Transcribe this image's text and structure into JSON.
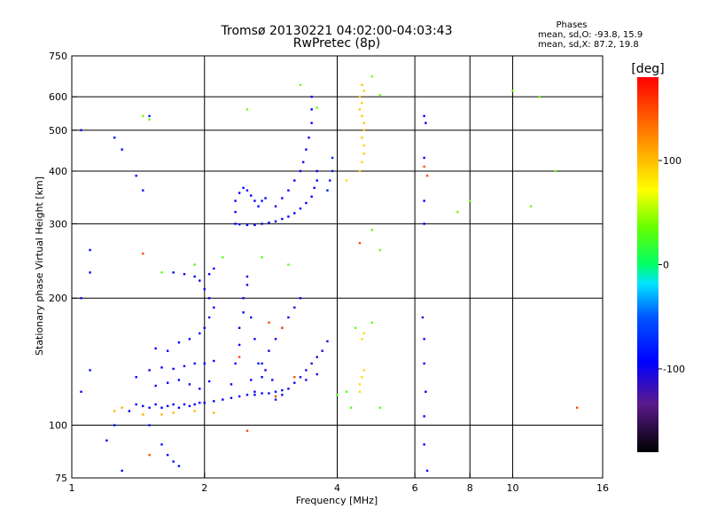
{
  "chart_data": {
    "type": "scatter",
    "title_line1": "Tromsø 20130221 04:02:00-04:03:43",
    "title_line2": "RwPretec (8p)",
    "phases_title": "Phases",
    "phases_o": "mean, sd,O: -93.8, 15.9",
    "phases_x": "mean, sd,X:  87.2, 19.8",
    "xlabel": "Frequency [MHz]",
    "ylabel": "Stationary phase Virtual Height [km]",
    "x_scale": "log",
    "y_scale": "log",
    "xlim": [
      1,
      16
    ],
    "ylim": [
      75,
      750
    ],
    "x_ticks": [
      {
        "v": 1,
        "label": "1"
      },
      {
        "v": 2,
        "label": "2"
      },
      {
        "v": 4,
        "label": "4"
      },
      {
        "v": 6,
        "label": "6"
      },
      {
        "v": 8,
        "label": "8"
      },
      {
        "v": 10,
        "label": "10"
      },
      {
        "v": 16,
        "label": "16"
      }
    ],
    "x_gridlines": [
      2,
      4,
      6,
      8,
      10
    ],
    "y_ticks": [
      {
        "v": 75,
        "label": "75"
      },
      {
        "v": 100,
        "label": "100"
      },
      {
        "v": 200,
        "label": "200"
      },
      {
        "v": 300,
        "label": "300"
      },
      {
        "v": 400,
        "label": "400"
      },
      {
        "v": 500,
        "label": "500"
      },
      {
        "v": 600,
        "label": "600"
      },
      {
        "v": 750,
        "label": "750"
      }
    ],
    "y_gridlines": [
      100,
      200,
      300,
      400,
      500,
      600
    ],
    "grid": true,
    "colorbar": {
      "label": "[deg]",
      "range": [
        -180,
        180
      ],
      "ticks": [
        {
          "v": 100,
          "label": "100"
        },
        {
          "v": 0,
          "label": "0"
        },
        {
          "v": -100,
          "label": "-100"
        }
      ]
    },
    "traces": [
      {
        "phase": -100,
        "points": [
          [
            1.35,
            108
          ],
          [
            1.4,
            112
          ],
          [
            1.45,
            111
          ],
          [
            1.5,
            110
          ],
          [
            1.55,
            112
          ],
          [
            1.6,
            110
          ],
          [
            1.65,
            111
          ],
          [
            1.7,
            112
          ],
          [
            1.75,
            110
          ],
          [
            1.8,
            112
          ],
          [
            1.85,
            111
          ],
          [
            1.9,
            112
          ],
          [
            1.95,
            113
          ],
          [
            2.0,
            113
          ],
          [
            2.1,
            114
          ],
          [
            2.2,
            115
          ],
          [
            2.3,
            116
          ],
          [
            2.4,
            117
          ],
          [
            2.5,
            118
          ],
          [
            2.6,
            118
          ],
          [
            2.7,
            119
          ],
          [
            2.8,
            119
          ],
          [
            2.9,
            120
          ],
          [
            3.0,
            121
          ]
        ]
      },
      {
        "phase": -100,
        "points": [
          [
            1.4,
            130
          ],
          [
            1.5,
            135
          ],
          [
            1.6,
            137
          ],
          [
            1.7,
            136
          ],
          [
            1.8,
            138
          ],
          [
            1.9,
            140
          ],
          [
            2.0,
            140
          ],
          [
            2.1,
            142
          ],
          [
            1.55,
            124
          ],
          [
            1.65,
            126
          ],
          [
            1.75,
            128
          ],
          [
            1.85,
            125
          ],
          [
            1.95,
            122
          ],
          [
            2.05,
            127
          ]
        ]
      },
      {
        "phase": -100,
        "points": [
          [
            1.55,
            152
          ],
          [
            1.65,
            150
          ],
          [
            1.75,
            157
          ],
          [
            1.85,
            160
          ],
          [
            1.95,
            165
          ],
          [
            2.0,
            170
          ],
          [
            2.05,
            180
          ],
          [
            2.1,
            190
          ],
          [
            2.05,
            200
          ],
          [
            2.0,
            210
          ],
          [
            1.95,
            220
          ],
          [
            2.05,
            228
          ],
          [
            2.1,
            235
          ],
          [
            1.9,
            225
          ],
          [
            1.8,
            228
          ],
          [
            1.7,
            230
          ]
        ]
      },
      {
        "phase": -100,
        "points": [
          [
            2.3,
            125
          ],
          [
            2.35,
            140
          ],
          [
            2.4,
            155
          ],
          [
            2.4,
            170
          ],
          [
            2.45,
            185
          ],
          [
            2.45,
            200
          ],
          [
            2.5,
            215
          ],
          [
            2.5,
            225
          ],
          [
            2.55,
            180
          ],
          [
            2.6,
            160
          ],
          [
            2.65,
            140
          ],
          [
            2.7,
            130
          ],
          [
            2.6,
            120
          ],
          [
            2.55,
            128
          ]
        ]
      },
      {
        "phase": -105,
        "points": [
          [
            2.7,
            140
          ],
          [
            2.8,
            150
          ],
          [
            2.9,
            160
          ],
          [
            3.0,
            170
          ],
          [
            3.1,
            180
          ],
          [
            3.2,
            190
          ],
          [
            3.3,
            200
          ],
          [
            2.75,
            135
          ],
          [
            2.85,
            128
          ]
        ]
      },
      {
        "phase": -110,
        "points": [
          [
            2.9,
            115
          ],
          [
            3.0,
            118
          ],
          [
            3.1,
            122
          ],
          [
            3.2,
            126
          ],
          [
            3.3,
            130
          ],
          [
            3.4,
            135
          ],
          [
            3.5,
            140
          ],
          [
            3.6,
            145
          ],
          [
            3.7,
            150
          ],
          [
            3.8,
            158
          ],
          [
            3.4,
            128
          ],
          [
            3.6,
            132
          ]
        ]
      },
      {
        "phase": -100,
        "points": [
          [
            2.35,
            300
          ],
          [
            2.4,
            299
          ],
          [
            2.5,
            298
          ],
          [
            2.6,
            298
          ],
          [
            2.7,
            300
          ],
          [
            2.8,
            302
          ],
          [
            2.9,
            304
          ],
          [
            3.0,
            308
          ],
          [
            3.1,
            312
          ],
          [
            3.2,
            318
          ],
          [
            3.3,
            326
          ],
          [
            3.4,
            336
          ],
          [
            3.5,
            348
          ],
          [
            3.55,
            365
          ],
          [
            3.6,
            380
          ],
          [
            3.6,
            400
          ]
        ]
      },
      {
        "phase": -100,
        "points": [
          [
            2.35,
            320
          ],
          [
            2.35,
            340
          ],
          [
            2.4,
            355
          ],
          [
            2.45,
            365
          ],
          [
            2.5,
            360
          ],
          [
            2.55,
            350
          ],
          [
            2.6,
            340
          ],
          [
            2.65,
            330
          ],
          [
            2.7,
            340
          ],
          [
            2.75,
            345
          ]
        ]
      },
      {
        "phase": -100,
        "points": [
          [
            2.9,
            330
          ],
          [
            3.0,
            345
          ],
          [
            3.1,
            360
          ],
          [
            3.2,
            380
          ],
          [
            3.3,
            400
          ],
          [
            3.35,
            420
          ],
          [
            3.4,
            450
          ],
          [
            3.45,
            480
          ],
          [
            3.5,
            520
          ],
          [
            3.5,
            560
          ],
          [
            3.5,
            600
          ]
        ]
      },
      {
        "phase": -90,
        "points": [
          [
            3.8,
            360
          ],
          [
            3.85,
            380
          ],
          [
            3.9,
            400
          ],
          [
            3.9,
            430
          ]
        ]
      },
      {
        "phase": 100,
        "points": [
          [
            4.5,
            400
          ],
          [
            4.55,
            420
          ],
          [
            4.6,
            440
          ],
          [
            4.6,
            460
          ],
          [
            4.55,
            480
          ],
          [
            4.6,
            500
          ],
          [
            4.6,
            520
          ],
          [
            4.55,
            540
          ],
          [
            4.5,
            560
          ],
          [
            4.55,
            580
          ],
          [
            4.5,
            600
          ],
          [
            4.6,
            620
          ],
          [
            4.55,
            640
          ]
        ]
      },
      {
        "phase": 95,
        "points": [
          [
            4.5,
            125
          ],
          [
            4.55,
            130
          ],
          [
            4.6,
            135
          ],
          [
            4.5,
            120
          ],
          [
            4.55,
            160
          ],
          [
            4.6,
            165
          ],
          [
            4.2,
            380
          ]
        ]
      },
      {
        "phase": 110,
        "points": [
          [
            1.25,
            108
          ],
          [
            1.3,
            110
          ],
          [
            1.45,
            106
          ],
          [
            1.6,
            106
          ],
          [
            1.7,
            107
          ],
          [
            1.9,
            108
          ],
          [
            2.1,
            107
          ]
        ]
      },
      {
        "phase": -100,
        "points": [
          [
            6.3,
            540
          ],
          [
            6.35,
            520
          ],
          [
            6.3,
            430
          ],
          [
            6.3,
            340
          ],
          [
            6.3,
            300
          ],
          [
            6.25,
            180
          ],
          [
            6.3,
            160
          ],
          [
            6.3,
            140
          ],
          [
            6.35,
            120
          ],
          [
            6.3,
            105
          ],
          [
            6.3,
            90
          ],
          [
            6.4,
            78
          ]
        ]
      },
      {
        "phase": -95,
        "points": [
          [
            1.05,
            120
          ],
          [
            1.1,
            135
          ],
          [
            1.05,
            200
          ],
          [
            1.1,
            230
          ],
          [
            1.1,
            260
          ],
          [
            1.05,
            500
          ],
          [
            1.25,
            480
          ],
          [
            1.3,
            450
          ],
          [
            1.4,
            390
          ],
          [
            1.45,
            360
          ],
          [
            1.5,
            540
          ],
          [
            1.5,
            100
          ],
          [
            1.6,
            90
          ],
          [
            1.65,
            85
          ],
          [
            1.7,
            82
          ],
          [
            1.75,
            80
          ],
          [
            1.3,
            78
          ],
          [
            1.2,
            92
          ],
          [
            1.25,
            100
          ]
        ]
      },
      {
        "phase": 40,
        "points": [
          [
            1.45,
            540
          ],
          [
            1.5,
            530
          ],
          [
            2.5,
            560
          ],
          [
            3.3,
            640
          ],
          [
            3.6,
            565
          ],
          [
            4.8,
            670
          ],
          [
            5.0,
            605
          ],
          [
            10.0,
            620
          ],
          [
            11.5,
            600
          ],
          [
            12.5,
            400
          ],
          [
            11.0,
            330
          ],
          [
            8.0,
            340
          ],
          [
            7.5,
            320
          ]
        ]
      },
      {
        "phase": 30,
        "points": [
          [
            1.6,
            230
          ],
          [
            1.9,
            240
          ],
          [
            2.2,
            250
          ],
          [
            2.7,
            250
          ],
          [
            3.1,
            240
          ],
          [
            4.2,
            120
          ],
          [
            4.4,
            170
          ],
          [
            4.8,
            175
          ],
          [
            5.0,
            110
          ],
          [
            4.0,
            118
          ],
          [
            4.3,
            110
          ],
          [
            4.8,
            290
          ],
          [
            5.0,
            260
          ]
        ]
      },
      {
        "phase": 150,
        "points": [
          [
            1.45,
            255
          ],
          [
            2.4,
            145
          ],
          [
            2.8,
            175
          ],
          [
            3.0,
            170
          ],
          [
            3.2,
            130
          ],
          [
            2.9,
            117
          ],
          [
            4.5,
            270
          ],
          [
            6.3,
            410
          ],
          [
            6.4,
            390
          ],
          [
            14.0,
            110
          ],
          [
            1.5,
            85
          ],
          [
            2.5,
            97
          ]
        ]
      }
    ]
  }
}
